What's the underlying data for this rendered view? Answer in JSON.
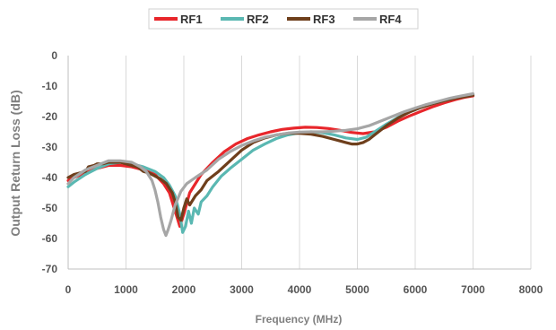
{
  "chart_data": {
    "type": "line",
    "title": "",
    "xlabel": "Frequency (MHz)",
    "ylabel": "Output Return Loss (dB)",
    "xlim": [
      0,
      8000
    ],
    "ylim": [
      -70,
      0
    ],
    "xticks": [
      0,
      1000,
      2000,
      3000,
      4000,
      5000,
      6000,
      7000,
      8000
    ],
    "yticks": [
      0,
      -10,
      -20,
      -30,
      -40,
      -50,
      -60,
      -70
    ],
    "grid": "vertical",
    "legend_position": "top",
    "series": [
      {
        "name": "RF1",
        "color": "#e8262b",
        "points": [
          [
            0,
            -41
          ],
          [
            100,
            -40
          ],
          [
            300,
            -38.5
          ],
          [
            500,
            -37
          ],
          [
            700,
            -36
          ],
          [
            900,
            -36
          ],
          [
            1100,
            -36.5
          ],
          [
            1300,
            -37.5
          ],
          [
            1500,
            -39
          ],
          [
            1650,
            -42
          ],
          [
            1750,
            -45
          ],
          [
            1850,
            -51
          ],
          [
            1930,
            -56
          ],
          [
            2000,
            -52
          ],
          [
            2100,
            -45
          ],
          [
            2300,
            -39
          ],
          [
            2500,
            -35
          ],
          [
            2700,
            -31.5
          ],
          [
            2900,
            -29
          ],
          [
            3100,
            -27.2
          ],
          [
            3300,
            -26
          ],
          [
            3500,
            -25
          ],
          [
            3700,
            -24.2
          ],
          [
            3900,
            -23.8
          ],
          [
            4100,
            -23.5
          ],
          [
            4300,
            -23.6
          ],
          [
            4500,
            -23.9
          ],
          [
            4700,
            -24.5
          ],
          [
            4900,
            -25.2
          ],
          [
            5100,
            -25.6
          ],
          [
            5300,
            -25
          ],
          [
            5500,
            -23.5
          ],
          [
            5700,
            -21.5
          ],
          [
            5900,
            -19.8
          ],
          [
            6100,
            -18.3
          ],
          [
            6300,
            -16.8
          ],
          [
            6500,
            -15.5
          ],
          [
            6700,
            -14.4
          ],
          [
            6850,
            -13.7
          ],
          [
            7000,
            -13.2
          ]
        ]
      },
      {
        "name": "RF2",
        "color": "#5ab8b2",
        "points": [
          [
            0,
            -43
          ],
          [
            100,
            -41.5
          ],
          [
            300,
            -39
          ],
          [
            500,
            -37
          ],
          [
            700,
            -35.5
          ],
          [
            900,
            -35
          ],
          [
            1100,
            -35.5
          ],
          [
            1300,
            -36.5
          ],
          [
            1500,
            -38
          ],
          [
            1650,
            -40
          ],
          [
            1750,
            -42.5
          ],
          [
            1850,
            -46
          ],
          [
            1930,
            -52
          ],
          [
            1980,
            -58
          ],
          [
            2030,
            -56
          ],
          [
            2080,
            -51
          ],
          [
            2130,
            -55
          ],
          [
            2180,
            -50
          ],
          [
            2250,
            -52
          ],
          [
            2300,
            -48
          ],
          [
            2400,
            -46
          ],
          [
            2500,
            -43
          ],
          [
            2650,
            -39.5
          ],
          [
            2800,
            -37
          ],
          [
            3000,
            -34
          ],
          [
            3200,
            -31
          ],
          [
            3400,
            -29
          ],
          [
            3600,
            -27.2
          ],
          [
            3800,
            -26
          ],
          [
            4000,
            -25.3
          ],
          [
            4200,
            -25
          ],
          [
            4400,
            -25.3
          ],
          [
            4600,
            -26
          ],
          [
            4800,
            -27
          ],
          [
            5000,
            -27.5
          ],
          [
            5150,
            -26.8
          ],
          [
            5300,
            -25
          ],
          [
            5500,
            -22.5
          ],
          [
            5700,
            -20.3
          ],
          [
            5900,
            -18.5
          ],
          [
            6100,
            -17
          ],
          [
            6300,
            -15.8
          ],
          [
            6500,
            -14.8
          ],
          [
            6700,
            -13.8
          ],
          [
            6850,
            -13.2
          ],
          [
            7000,
            -12.8
          ]
        ]
      },
      {
        "name": "RF3",
        "color": "#6e3f1c",
        "points": [
          [
            0,
            -40
          ],
          [
            100,
            -39
          ],
          [
            200,
            -38.5
          ],
          [
            300,
            -38
          ],
          [
            350,
            -36.5
          ],
          [
            450,
            -36
          ],
          [
            500,
            -35.5
          ],
          [
            600,
            -35.5
          ],
          [
            700,
            -35
          ],
          [
            800,
            -35
          ],
          [
            900,
            -35
          ],
          [
            1000,
            -35.5
          ],
          [
            1100,
            -36
          ],
          [
            1200,
            -36.5
          ],
          [
            1300,
            -38
          ],
          [
            1400,
            -38.5
          ],
          [
            1500,
            -39.5
          ],
          [
            1600,
            -40.5
          ],
          [
            1700,
            -42
          ],
          [
            1800,
            -45
          ],
          [
            1850,
            -48
          ],
          [
            1900,
            -53
          ],
          [
            1950,
            -54
          ],
          [
            2000,
            -50
          ],
          [
            2050,
            -47
          ],
          [
            2100,
            -49
          ],
          [
            2200,
            -46
          ],
          [
            2300,
            -44
          ],
          [
            2400,
            -41
          ],
          [
            2600,
            -38
          ],
          [
            2800,
            -34.5
          ],
          [
            3000,
            -31
          ],
          [
            3200,
            -28.5
          ],
          [
            3400,
            -27
          ],
          [
            3600,
            -26
          ],
          [
            3800,
            -25.5
          ],
          [
            4000,
            -25.5
          ],
          [
            4200,
            -25.8
          ],
          [
            4400,
            -26.5
          ],
          [
            4600,
            -27.5
          ],
          [
            4800,
            -28.5
          ],
          [
            4900,
            -29
          ],
          [
            5000,
            -29
          ],
          [
            5100,
            -28.5
          ],
          [
            5200,
            -27.5
          ],
          [
            5300,
            -26
          ],
          [
            5500,
            -23
          ],
          [
            5700,
            -20.5
          ],
          [
            5900,
            -18.5
          ],
          [
            6100,
            -17
          ],
          [
            6300,
            -15.8
          ],
          [
            6500,
            -14.8
          ],
          [
            6700,
            -14
          ],
          [
            6850,
            -13.5
          ],
          [
            7000,
            -13
          ]
        ]
      },
      {
        "name": "RF4",
        "color": "#a6a6a6",
        "points": [
          [
            0,
            -42
          ],
          [
            100,
            -40
          ],
          [
            300,
            -37.5
          ],
          [
            500,
            -36
          ],
          [
            700,
            -34.5
          ],
          [
            900,
            -34.5
          ],
          [
            1100,
            -35
          ],
          [
            1250,
            -36.5
          ],
          [
            1350,
            -38
          ],
          [
            1450,
            -41
          ],
          [
            1500,
            -44
          ],
          [
            1550,
            -48
          ],
          [
            1600,
            -53
          ],
          [
            1650,
            -57
          ],
          [
            1690,
            -59
          ],
          [
            1730,
            -57
          ],
          [
            1780,
            -54
          ],
          [
            1850,
            -49
          ],
          [
            1950,
            -44.5
          ],
          [
            2050,
            -42
          ],
          [
            2200,
            -40
          ],
          [
            2400,
            -37.5
          ],
          [
            2600,
            -34
          ],
          [
            2800,
            -31.5
          ],
          [
            3000,
            -29.5
          ],
          [
            3200,
            -28
          ],
          [
            3400,
            -26.8
          ],
          [
            3600,
            -26
          ],
          [
            3800,
            -25.4
          ],
          [
            4000,
            -25.1
          ],
          [
            4200,
            -25
          ],
          [
            4400,
            -25
          ],
          [
            4600,
            -24.8
          ],
          [
            4800,
            -24.5
          ],
          [
            5000,
            -24
          ],
          [
            5200,
            -23
          ],
          [
            5400,
            -21.5
          ],
          [
            5600,
            -20
          ],
          [
            5800,
            -18.5
          ],
          [
            6000,
            -17.2
          ],
          [
            6200,
            -16
          ],
          [
            6400,
            -15
          ],
          [
            6600,
            -14
          ],
          [
            6800,
            -13.2
          ],
          [
            7000,
            -12.5
          ]
        ]
      }
    ]
  }
}
